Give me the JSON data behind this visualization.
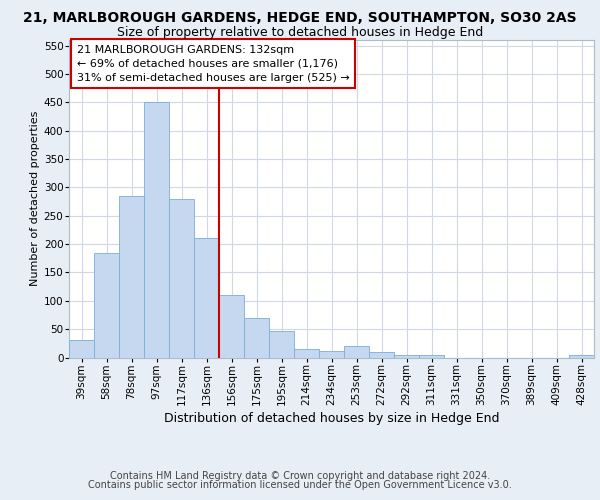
{
  "title1": "21, MARLBOROUGH GARDENS, HEDGE END, SOUTHAMPTON, SO30 2AS",
  "title2": "Size of property relative to detached houses in Hedge End",
  "xlabel": "Distribution of detached houses by size in Hedge End",
  "ylabel": "Number of detached properties",
  "footer1": "Contains HM Land Registry data © Crown copyright and database right 2024.",
  "footer2": "Contains public sector information licensed under the Open Government Licence v3.0.",
  "categories": [
    "39sqm",
    "58sqm",
    "78sqm",
    "97sqm",
    "117sqm",
    "136sqm",
    "156sqm",
    "175sqm",
    "195sqm",
    "214sqm",
    "234sqm",
    "253sqm",
    "272sqm",
    "292sqm",
    "311sqm",
    "331sqm",
    "350sqm",
    "370sqm",
    "389sqm",
    "409sqm",
    "428sqm"
  ],
  "values": [
    30,
    185,
    285,
    450,
    280,
    210,
    110,
    70,
    46,
    15,
    11,
    20,
    10,
    5,
    5,
    0,
    0,
    0,
    0,
    0,
    5
  ],
  "bar_color": "#c5d8ef",
  "bar_edge_color": "#7aaedc",
  "vline_x": 5.5,
  "vline_color": "#cc0000",
  "annotation_text": "21 MARLBOROUGH GARDENS: 132sqm\n← 69% of detached houses are smaller (1,176)\n31% of semi-detached houses are larger (525) →",
  "annotation_box_color": "white",
  "annotation_box_edge": "#cc0000",
  "ylim": [
    0,
    560
  ],
  "yticks": [
    0,
    50,
    100,
    150,
    200,
    250,
    300,
    350,
    400,
    450,
    500,
    550
  ],
  "bg_color": "#e8eef5",
  "plot_bg_color": "#ffffff",
  "grid_color": "#d0d8e8",
  "title1_fontsize": 10,
  "title2_fontsize": 9,
  "xlabel_fontsize": 9,
  "ylabel_fontsize": 8,
  "tick_fontsize": 7.5,
  "annot_fontsize": 8,
  "footer_fontsize": 7
}
